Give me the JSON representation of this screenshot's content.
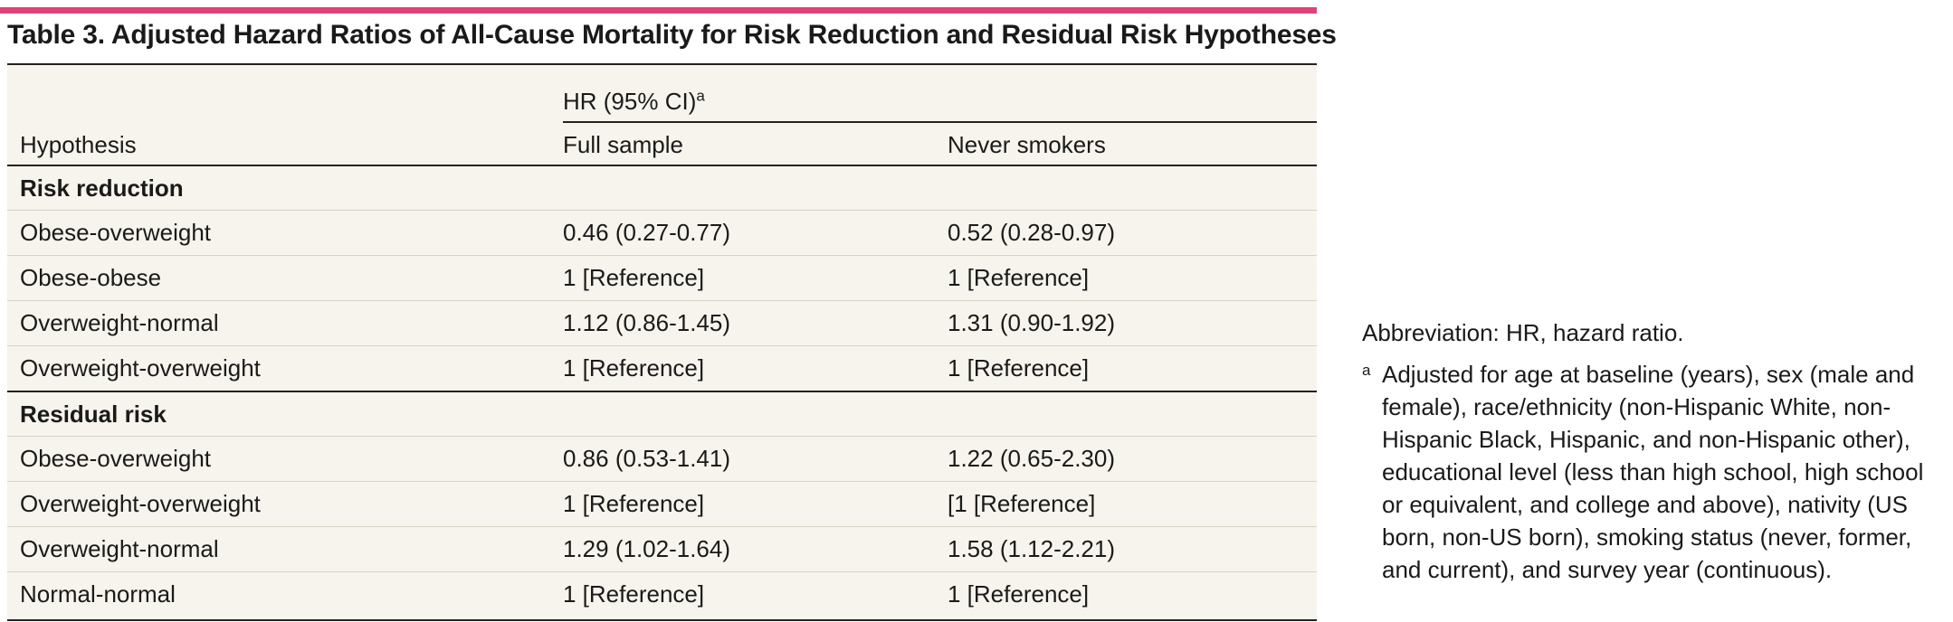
{
  "colors": {
    "accent": "#e0437a",
    "table_bg": "#f6f4ec",
    "rule": "#222222"
  },
  "title": "Table 3. Adjusted Hazard Ratios of All-Cause Mortality for Risk Reduction and Residual Risk Hypotheses",
  "header": {
    "hr_label": "HR (95% CI)",
    "hr_superscript": "a",
    "hypothesis": "Hypothesis",
    "full_sample": "Full sample",
    "never_smokers": "Never smokers"
  },
  "sections": [
    {
      "label": "Risk reduction",
      "rows": [
        {
          "hypothesis": "Obese-overweight",
          "full": "0.46 (0.27-0.77)",
          "never": "0.52 (0.28-0.97)"
        },
        {
          "hypothesis": "Obese-obese",
          "full": "1 [Reference]",
          "never": "1 [Reference]"
        },
        {
          "hypothesis": "Overweight-normal",
          "full": "1.12 (0.86-1.45)",
          "never": "1.31 (0.90-1.92)"
        },
        {
          "hypothesis": "Overweight-overweight",
          "full": "1 [Reference]",
          "never": "1 [Reference]"
        }
      ]
    },
    {
      "label": "Residual risk",
      "rows": [
        {
          "hypothesis": "Obese-overweight",
          "full": "0.86 (0.53-1.41)",
          "never": "1.22 (0.65-2.30)"
        },
        {
          "hypothesis": "Overweight-overweight",
          "full": "1 [Reference]",
          "never": "[1 [Reference]"
        },
        {
          "hypothesis": "Overweight-normal",
          "full": "1.29 (1.02-1.64)",
          "never": "1.58 (1.12-2.21)"
        },
        {
          "hypothesis": "Normal-normal",
          "full": "1 [Reference]",
          "never": "1 [Reference]"
        }
      ]
    }
  ],
  "notes": {
    "abbreviation": "Abbreviation: HR, hazard ratio.",
    "footnote_mark": "a",
    "footnote_text": "Adjusted for age at baseline (years), sex (male and female), race/ethnicity (non-Hispanic White, non-Hispanic Black, Hispanic, and non-Hispanic other), educational level (less than high school, high school or equivalent, and college and above), nativity (US born, non-US born), smoking status (never, former, and current), and survey year (continuous)."
  }
}
